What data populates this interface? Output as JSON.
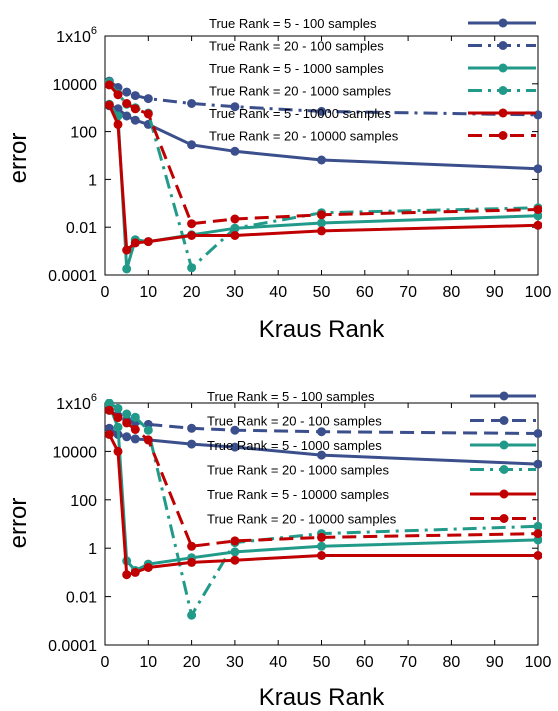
{
  "chart_data": [
    {
      "type": "line",
      "xlabel": "Kraus Rank",
      "ylabel": "error",
      "xlim": [
        0,
        100
      ],
      "ylim": [
        0.0001,
        1000000
      ],
      "yscale": "log",
      "grid": false,
      "legend_position": "top-right",
      "x_ticks": [
        "0",
        "10",
        "20",
        "30",
        "40",
        "50",
        "60",
        "70",
        "80",
        "90",
        "100"
      ],
      "y_ticks": [
        {
          "value": 0.0001,
          "label": "0.0001"
        },
        {
          "value": 0.01,
          "label": "0.01"
        },
        {
          "value": 1,
          "label": "1"
        },
        {
          "value": 100,
          "label": "100"
        },
        {
          "value": 10000,
          "label": "10000"
        },
        {
          "value": 1000000,
          "label": "1x10"
        }
      ],
      "series": [
        {
          "name": "True Rank = 5 - 100 samples",
          "color": "#3b4f8c",
          "dash": "solid",
          "points": [
            [
              1,
              1200
            ],
            [
              3,
              900
            ],
            [
              5,
              450
            ],
            [
              7,
              300
            ],
            [
              10,
              200
            ],
            [
              20,
              28
            ],
            [
              30,
              15
            ],
            [
              50,
              6.5
            ],
            [
              100,
              2.8
            ]
          ]
        },
        {
          "name": "True Rank = 20 - 100 samples",
          "color": "#3b4f8c",
          "dash": "dashdot",
          "points": [
            [
              1,
              13000
            ],
            [
              3,
              7000
            ],
            [
              5,
              4500
            ],
            [
              7,
              3200
            ],
            [
              10,
              2400
            ],
            [
              20,
              1500
            ],
            [
              30,
              1100
            ],
            [
              50,
              700
            ],
            [
              100,
              500
            ]
          ]
        },
        {
          "name": "True Rank = 5 - 1000 samples",
          "color": "#229a8a",
          "dash": "solid",
          "points": [
            [
              1,
              1400
            ],
            [
              3,
              450
            ],
            [
              5,
              0.00018
            ],
            [
              7,
              0.003
            ],
            [
              10,
              0.0025
            ],
            [
              20,
              0.0048
            ],
            [
              30,
              0.009
            ],
            [
              50,
              0.015
            ],
            [
              100,
              0.03
            ]
          ]
        },
        {
          "name": "True Rank = 20 - 1000 samples",
          "color": "#229a8a",
          "dash": "dashdot",
          "points": [
            [
              1,
              12000
            ],
            [
              3,
              3800
            ],
            [
              5,
              1400
            ],
            [
              7,
              1000
            ],
            [
              10,
              600
            ],
            [
              20,
              0.0002
            ],
            [
              30,
              0.009
            ],
            [
              50,
              0.04
            ],
            [
              100,
              0.065
            ]
          ]
        },
        {
          "name": "True Rank = 5 - 10000 samples",
          "color": "#c00000",
          "dash": "solid",
          "points": [
            [
              1,
              1300
            ],
            [
              3,
              200
            ],
            [
              5,
              0.0011
            ],
            [
              7,
              0.0022
            ],
            [
              10,
              0.0025
            ],
            [
              20,
              0.0045
            ],
            [
              30,
              0.0045
            ],
            [
              50,
              0.007
            ],
            [
              100,
              0.012
            ]
          ]
        },
        {
          "name": "True Rank = 20 - 10000 samples",
          "color": "#c00000",
          "dash": "dashed",
          "points": [
            [
              1,
              9000
            ],
            [
              3,
              3500
            ],
            [
              5,
              1500
            ],
            [
              7,
              900
            ],
            [
              10,
              550
            ],
            [
              20,
              0.014
            ],
            [
              30,
              0.022
            ],
            [
              50,
              0.033
            ],
            [
              100,
              0.055
            ]
          ]
        }
      ]
    },
    {
      "type": "line",
      "xlabel": "Kraus Rank",
      "ylabel": "error",
      "xlim": [
        0,
        100
      ],
      "ylim": [
        0.0001,
        1000000
      ],
      "yscale": "log",
      "grid": false,
      "legend_position": "top-right",
      "x_ticks": [
        "0",
        "10",
        "20",
        "30",
        "40",
        "50",
        "60",
        "70",
        "80",
        "90",
        "100"
      ],
      "y_ticks": [
        {
          "value": 0.0001,
          "label": "0.0001"
        },
        {
          "value": 0.01,
          "label": "0.01"
        },
        {
          "value": 1,
          "label": "1"
        },
        {
          "value": 100,
          "label": "100"
        },
        {
          "value": 10000,
          "label": "10000"
        },
        {
          "value": 1000000,
          "label": "1x10"
        }
      ],
      "series": [
        {
          "name": "True Rank = 5 - 100 samples",
          "color": "#3b4f8c",
          "dash": "solid",
          "points": [
            [
              1,
              90000
            ],
            [
              3,
              50000
            ],
            [
              5,
              40000
            ],
            [
              7,
              33000
            ],
            [
              10,
              30000
            ],
            [
              20,
              20000
            ],
            [
              30,
              15000
            ],
            [
              50,
              7000
            ],
            [
              100,
              3000
            ]
          ]
        },
        {
          "name": "True Rank = 20 - 100 samples",
          "color": "#3b4f8c",
          "dash": "dashed",
          "points": [
            [
              1,
              500000
            ],
            [
              3,
              300000
            ],
            [
              5,
              200000
            ],
            [
              7,
              160000
            ],
            [
              10,
              130000
            ],
            [
              20,
              90000
            ],
            [
              30,
              75000
            ],
            [
              50,
              65000
            ],
            [
              100,
              55000
            ]
          ]
        },
        {
          "name": "True Rank = 5 - 1000 samples",
          "color": "#229a8a",
          "dash": "solid",
          "points": [
            [
              1,
              800000
            ],
            [
              3,
              100000
            ],
            [
              5,
              0.3
            ],
            [
              7,
              0.12
            ],
            [
              10,
              0.22
            ],
            [
              20,
              0.4
            ],
            [
              30,
              0.7
            ],
            [
              50,
              1.2
            ],
            [
              100,
              2.2
            ]
          ]
        },
        {
          "name": "True Rank = 20 - 1000 samples",
          "color": "#229a8a",
          "dash": "dashdot",
          "points": [
            [
              1,
              1000000
            ],
            [
              3,
              600000
            ],
            [
              5,
              350000
            ],
            [
              7,
              260000
            ],
            [
              10,
              75000
            ],
            [
              20,
              0.0017
            ],
            [
              30,
              1.7
            ],
            [
              50,
              4
            ],
            [
              100,
              8
            ]
          ]
        },
        {
          "name": "True Rank = 5 - 10000 samples",
          "color": "#c00000",
          "dash": "solid",
          "points": [
            [
              1,
              50000
            ],
            [
              3,
              10000
            ],
            [
              5,
              0.08
            ],
            [
              7,
              0.1
            ],
            [
              10,
              0.16
            ],
            [
              20,
              0.26
            ],
            [
              30,
              0.32
            ],
            [
              50,
              0.5
            ],
            [
              100,
              0.5
            ]
          ]
        },
        {
          "name": "True Rank = 20 - 10000 samples",
          "color": "#c00000",
          "dash": "dashed",
          "points": [
            [
              1,
              500000
            ],
            [
              3,
              250000
            ],
            [
              5,
              150000
            ],
            [
              7,
              80000
            ],
            [
              10,
              30000
            ],
            [
              20,
              1.2
            ],
            [
              30,
              2
            ],
            [
              50,
              2.8
            ],
            [
              100,
              4
            ]
          ]
        }
      ]
    }
  ]
}
